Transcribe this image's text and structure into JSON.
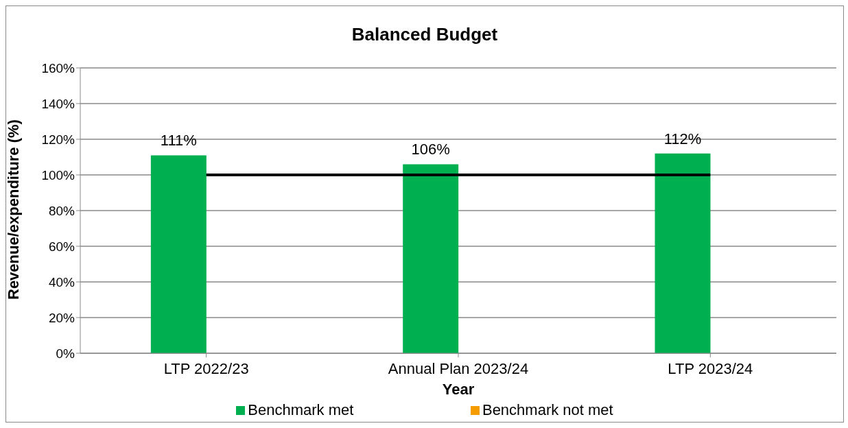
{
  "chart_data": {
    "type": "bar",
    "title": "Balanced Budget",
    "xlabel": "Year",
    "ylabel": "Revenue/expenditure (%)",
    "categories": [
      "LTP 2022/23",
      "Annual Plan 2023/24",
      "LTP 2023/24"
    ],
    "series": [
      {
        "name": "Benchmark met",
        "color": "#00b050",
        "values": [
          111,
          106,
          112
        ],
        "value_labels": [
          "111%",
          "106%",
          "112%"
        ]
      },
      {
        "name": "Benchmark not met",
        "color": "#f59d00",
        "values": [
          null,
          null,
          null
        ]
      },
      {
        "type": "line",
        "color": "#000000",
        "values": [
          100,
          100,
          100
        ],
        "marker": "none",
        "line_style": "solid"
      }
    ],
    "ylim": [
      0,
      160
    ],
    "yticks": [
      {
        "value": 0,
        "label": "0%"
      },
      {
        "value": 20,
        "label": "20%"
      },
      {
        "value": 40,
        "label": "40%"
      },
      {
        "value": 60,
        "label": "60%"
      },
      {
        "value": 80,
        "label": "80%"
      },
      {
        "value": 100,
        "label": "100%"
      },
      {
        "value": 120,
        "label": "120%"
      },
      {
        "value": 140,
        "label": "140%"
      },
      {
        "value": 160,
        "label": "160%"
      }
    ],
    "grid": "y",
    "legend": "bottom"
  }
}
